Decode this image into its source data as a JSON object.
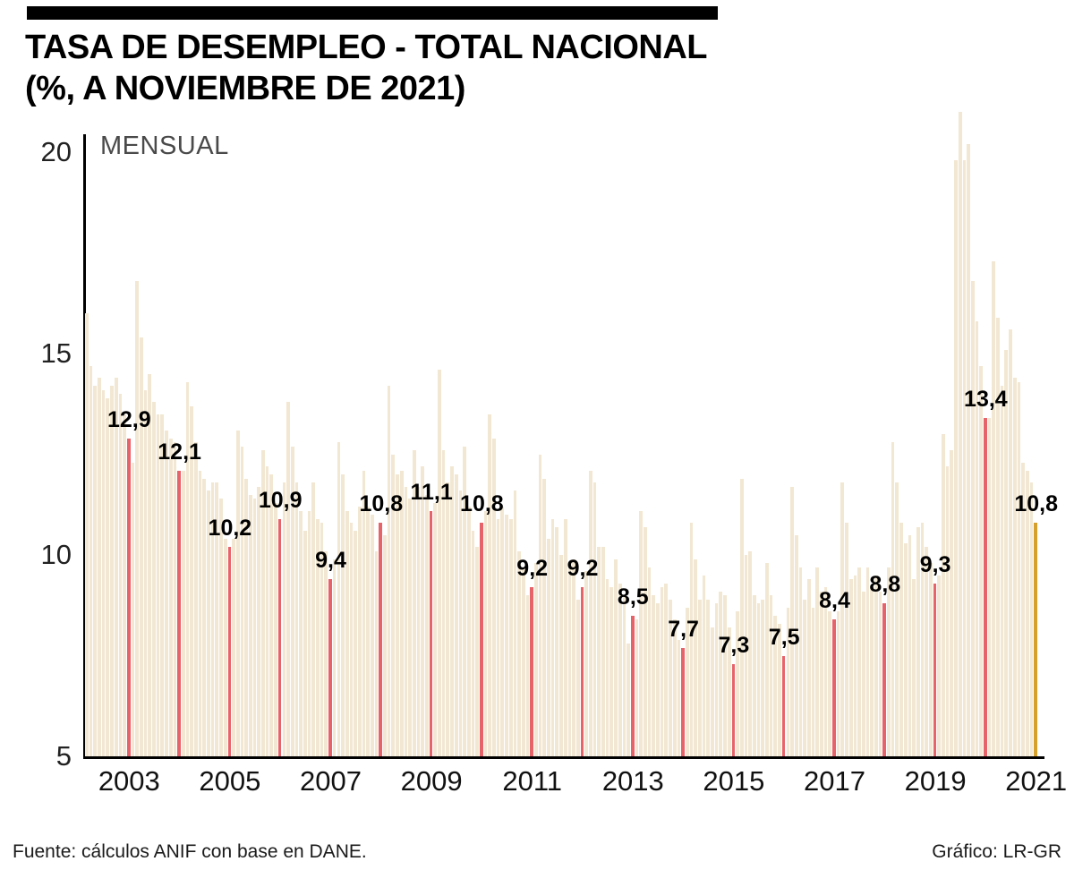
{
  "header": {
    "title": "TASA DE DESEMPLEO - TOTAL NACIONAL",
    "subtitle": "(%, A NOVIEMBRE DE 2021)"
  },
  "footer": {
    "source": "Fuente: cálculos ANIF con base en DANE.",
    "credit": "Gráfico: LR-GR"
  },
  "chart_data": {
    "type": "bar",
    "title": "TASA DE DESEMPLEO - TOTAL NACIONAL",
    "subtitle": "(%, A NOVIEMBRE DE 2021)",
    "series_label": "MENSUAL",
    "unit": "%",
    "start_year": 2003,
    "start_month": 1,
    "end_period": "NOVIEMBRE 2021",
    "ylim": [
      5,
      21
    ],
    "yticks": [
      20,
      15,
      10,
      5
    ],
    "xtick_years": [
      2003,
      2005,
      2007,
      2009,
      2011,
      2013,
      2015,
      2017,
      2019,
      2021
    ],
    "grid": false,
    "legend_position": "none",
    "monthly_values": [
      16.0,
      14.7,
      14.2,
      14.4,
      14.1,
      13.9,
      14.2,
      14.4,
      14.0,
      13.5,
      12.9,
      12.3,
      16.8,
      15.4,
      14.1,
      14.5,
      13.8,
      13.5,
      13.5,
      13.1,
      12.9,
      12.8,
      12.1,
      12.1,
      14.3,
      13.7,
      12.8,
      12.1,
      11.9,
      11.6,
      11.8,
      11.8,
      11.4,
      10.4,
      10.2,
      10.4,
      13.1,
      12.7,
      11.9,
      11.5,
      11.4,
      11.7,
      12.6,
      12.2,
      12.0,
      11.3,
      10.9,
      11.8,
      13.8,
      12.7,
      11.8,
      11.1,
      10.6,
      11.1,
      11.8,
      10.9,
      10.8,
      10.1,
      9.4,
      9.9,
      12.8,
      12.0,
      11.1,
      10.8,
      10.6,
      11.2,
      12.1,
      11.2,
      11.0,
      10.1,
      10.8,
      10.5,
      14.2,
      12.5,
      12.0,
      12.1,
      11.7,
      11.4,
      12.6,
      11.7,
      12.2,
      11.5,
      11.1,
      11.3,
      14.6,
      12.6,
      11.8,
      12.2,
      12.0,
      11.6,
      12.7,
      11.2,
      10.6,
      10.2,
      10.8,
      11.1,
      13.5,
      12.9,
      10.9,
      11.2,
      11.0,
      10.9,
      11.6,
      10.1,
      9.7,
      9.0,
      9.2,
      9.8,
      12.5,
      11.9,
      10.4,
      10.9,
      10.7,
      10.0,
      10.9,
      9.7,
      9.9,
      8.9,
      9.2,
      9.6,
      12.1,
      11.8,
      10.2,
      10.2,
      9.4,
      9.2,
      9.9,
      9.3,
      9.0,
      7.8,
      8.5,
      8.4,
      11.1,
      10.7,
      9.7,
      9.0,
      8.8,
      9.2,
      9.3,
      8.9,
      8.4,
      7.9,
      7.7,
      8.7,
      10.8,
      9.9,
      8.9,
      9.5,
      8.9,
      8.2,
      8.8,
      9.1,
      9.0,
      8.2,
      7.3,
      8.6,
      11.9,
      10.0,
      10.1,
      9.0,
      8.8,
      8.9,
      9.8,
      9.0,
      8.5,
      8.3,
      7.5,
      8.7,
      11.7,
      10.5,
      9.7,
      8.9,
      9.4,
      8.7,
      9.7,
      9.1,
      9.2,
      8.6,
      8.4,
      8.6,
      11.8,
      10.8,
      9.4,
      9.5,
      9.7,
      9.1,
      9.7,
      9.2,
      9.5,
      9.1,
      8.8,
      9.7,
      12.8,
      11.8,
      10.8,
      10.3,
      10.5,
      9.4,
      10.7,
      10.8,
      10.2,
      9.8,
      9.3,
      9.5,
      13.0,
      12.2,
      12.6,
      19.8,
      21.4,
      19.8,
      20.2,
      16.8,
      15.8,
      14.7,
      13.4,
      13.4,
      17.3,
      15.9,
      14.2,
      15.1,
      15.6,
      14.4,
      14.3,
      12.3,
      12.1,
      11.8,
      10.8
    ],
    "november_annotations": [
      {
        "year": 2003,
        "value": 12.9,
        "label": "12,9"
      },
      {
        "year": 2004,
        "value": 12.1,
        "label": "12,1"
      },
      {
        "year": 2005,
        "value": 10.2,
        "label": "10,2"
      },
      {
        "year": 2006,
        "value": 10.9,
        "label": "10,9"
      },
      {
        "year": 2007,
        "value": 9.4,
        "label": "9,4"
      },
      {
        "year": 2008,
        "value": 10.8,
        "label": "10,8"
      },
      {
        "year": 2009,
        "value": 11.1,
        "label": "11,1"
      },
      {
        "year": 2010,
        "value": 10.8,
        "label": "10,8"
      },
      {
        "year": 2011,
        "value": 9.2,
        "label": "9,2"
      },
      {
        "year": 2012,
        "value": 9.2,
        "label": "9,2"
      },
      {
        "year": 2013,
        "value": 8.5,
        "label": "8,5"
      },
      {
        "year": 2014,
        "value": 7.7,
        "label": "7,7"
      },
      {
        "year": 2015,
        "value": 7.3,
        "label": "7,3"
      },
      {
        "year": 2016,
        "value": 7.5,
        "label": "7,5"
      },
      {
        "year": 2017,
        "value": 8.4,
        "label": "8,4"
      },
      {
        "year": 2018,
        "value": 8.8,
        "label": "8,8"
      },
      {
        "year": 2019,
        "value": 9.3,
        "label": "9,3"
      },
      {
        "year": 2020,
        "value": 13.4,
        "label": "13,4"
      },
      {
        "year": 2021,
        "value": 10.8,
        "label": "10,8"
      }
    ],
    "colors": {
      "bar": "#f2e7d2",
      "november_highlight": "#e7636a",
      "latest_highlight": "#d6a02c",
      "axis": "#000000",
      "title": "#000000",
      "series_label": "#4a4a4a"
    }
  }
}
